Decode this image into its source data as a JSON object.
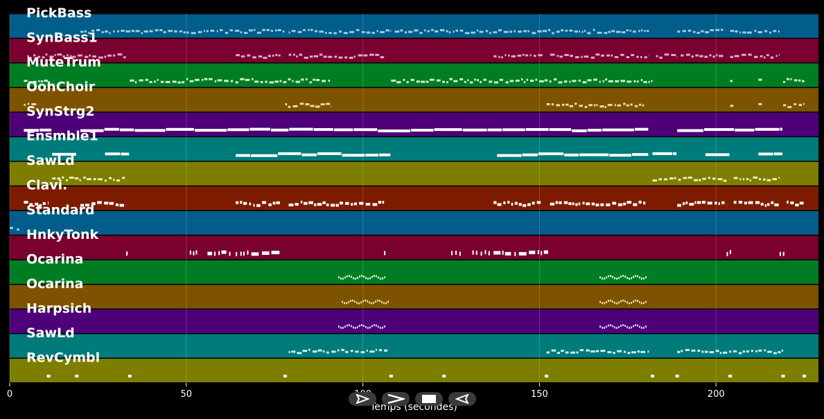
{
  "chart_data": {
    "type": "piano-roll",
    "xlabel": "Temps (secondes)",
    "xlim": [
      0,
      229
    ],
    "xticks": [
      0,
      50,
      100,
      150,
      200
    ],
    "grid": true,
    "tracks": [
      {
        "name": "PickBass",
        "color": "#015d8a",
        "note_color": "#9ecbe0",
        "style": "small",
        "segments": [
          [
            20,
            78
          ],
          [
            79,
            108
          ],
          [
            109,
            181
          ],
          [
            189,
            202
          ],
          [
            204,
            218
          ]
        ]
      },
      {
        "name": "SynBass1",
        "color": "#7a0030",
        "note_color": "#e7a9c4",
        "style": "small",
        "segments": [
          [
            5,
            33
          ],
          [
            64,
            77
          ],
          [
            79,
            106
          ],
          [
            137,
            151
          ],
          [
            153,
            181
          ],
          [
            183,
            189
          ],
          [
            190,
            202
          ],
          [
            204,
            218
          ]
        ]
      },
      {
        "name": "MuteTrum",
        "color": "#007d22",
        "note_color": "#d7f0d7",
        "style": "small",
        "segments": [
          [
            4,
            11
          ],
          [
            34,
            91
          ],
          [
            108,
            182
          ],
          [
            204,
            205
          ],
          [
            212,
            213
          ],
          [
            219,
            225
          ]
        ]
      },
      {
        "name": "OohChoir",
        "color": "#7d5300",
        "note_color": "#eed9ab",
        "style": "small",
        "segments": [
          [
            4,
            8
          ],
          [
            78,
            91
          ],
          [
            152,
            180
          ],
          [
            204,
            205
          ],
          [
            212,
            213
          ],
          [
            219,
            225
          ]
        ]
      },
      {
        "name": "SynStrg2",
        "color": "#4e0078",
        "note_color": "#ffffff",
        "style": "long",
        "segments": [
          [
            4,
            12
          ],
          [
            20,
            181
          ],
          [
            189,
            219
          ]
        ]
      },
      {
        "name": "Ensmble1",
        "color": "#007b7b",
        "note_color": "#ffffff",
        "style": "long",
        "segments": [
          [
            12,
            19
          ],
          [
            27,
            34
          ],
          [
            64,
            108
          ],
          [
            138,
            181
          ],
          [
            182,
            189
          ],
          [
            197,
            204
          ],
          [
            212,
            219
          ]
        ]
      },
      {
        "name": "SawLd",
        "color": "#7d7d00",
        "note_color": "#eeeebb",
        "style": "small",
        "segments": [
          [
            12,
            33
          ],
          [
            182,
            203
          ],
          [
            205,
            218
          ]
        ]
      },
      {
        "name": "Clavi.",
        "color": "#7d1b00",
        "note_color": "#ffffff",
        "style": "mid",
        "segments": [
          [
            4,
            11
          ],
          [
            20,
            33
          ],
          [
            64,
            77
          ],
          [
            79,
            106
          ],
          [
            137,
            151
          ],
          [
            153,
            180
          ],
          [
            189,
            203
          ],
          [
            205,
            218
          ],
          [
            220,
            225
          ]
        ]
      },
      {
        "name": "Standard",
        "color": "#015d8a",
        "note_color": "#9ecbe0",
        "style": "small",
        "segments": [
          [
            0,
            1
          ],
          [
            2,
            3
          ]
        ]
      },
      {
        "name": "HnkyTonk",
        "color": "#7a0030",
        "note_color": "#ffffff",
        "style": "mixed",
        "segments": [
          [
            33,
            34
          ],
          [
            51,
            53
          ],
          [
            56,
            63
          ],
          [
            64,
            77
          ],
          [
            106,
            107
          ],
          [
            125,
            128
          ],
          [
            131,
            136
          ],
          [
            137,
            152
          ],
          [
            203,
            204
          ],
          [
            218,
            219
          ]
        ]
      },
      {
        "name": "Ocarina",
        "color": "#007d22",
        "note_color": "#d7f0d7",
        "style": "wave",
        "segments": [
          [
            93,
            106
          ],
          [
            167,
            180
          ]
        ]
      },
      {
        "name": "Ocarina",
        "color": "#7d5300",
        "note_color": "#eed9ab",
        "style": "wave",
        "segments": [
          [
            94,
            107
          ],
          [
            167,
            180
          ]
        ]
      },
      {
        "name": "Harpsich",
        "color": "#4e0078",
        "note_color": "#e0c8ff",
        "style": "wave",
        "segments": [
          [
            93,
            106
          ],
          [
            167,
            180
          ]
        ]
      },
      {
        "name": "SawLd",
        "color": "#007b7b",
        "note_color": "#d0f0f0",
        "style": "small",
        "segments": [
          [
            79,
            107
          ],
          [
            152,
            181
          ],
          [
            189,
            219
          ]
        ]
      },
      {
        "name": "RevCymbl",
        "color": "#7d7d00",
        "note_color": "#ffffff",
        "style": "hits",
        "hits": [
          11,
          19,
          34,
          78,
          108,
          123,
          152,
          182,
          189,
          204,
          219,
          225
        ]
      }
    ]
  },
  "controls": [
    {
      "name": "play-button",
      "icon": "play-outline-icon"
    },
    {
      "name": "next-button",
      "icon": "chevron-right-icon"
    },
    {
      "name": "stop-button",
      "icon": "stop-icon"
    },
    {
      "name": "rewind-button",
      "icon": "rewind-triangle-icon"
    }
  ]
}
